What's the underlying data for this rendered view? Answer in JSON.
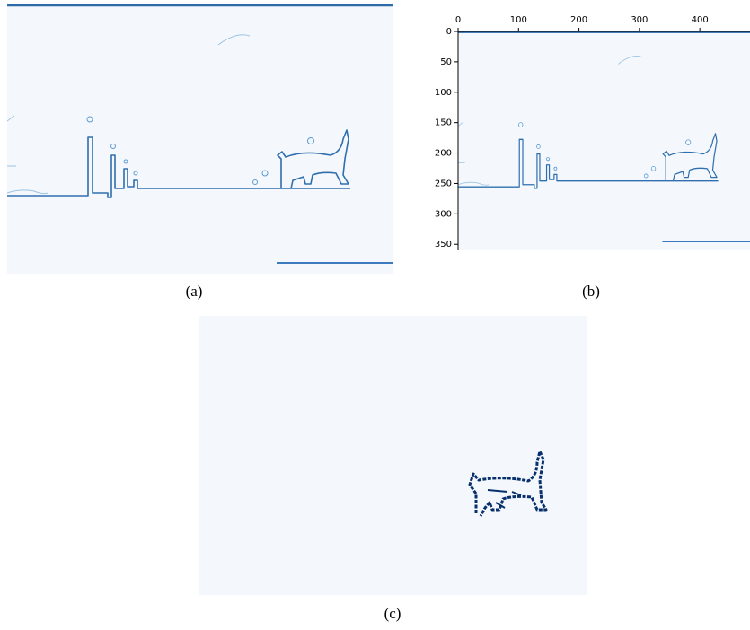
{
  "panels": [
    {
      "caption": "(a)"
    },
    {
      "caption": "(b)",
      "xlim": [
        0,
        480
      ],
      "ylim": [
        0,
        360
      ],
      "xticks": [
        0,
        100,
        200,
        300,
        400
      ],
      "yticks": [
        0,
        50,
        100,
        150,
        200,
        250,
        300,
        350
      ]
    },
    {
      "caption": "(c)"
    }
  ]
}
